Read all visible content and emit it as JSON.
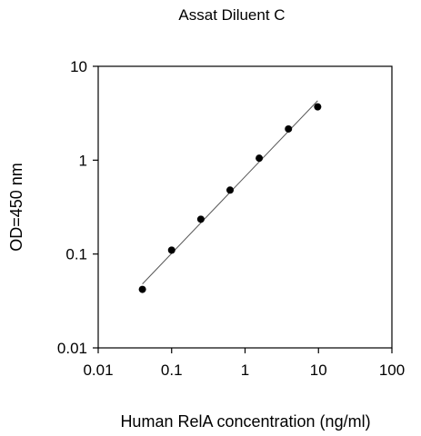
{
  "chart_data": {
    "type": "scatter",
    "title": "Assat Diluent C",
    "xlabel": "Human RelA concentration (ng/ml)",
    "ylabel": "OD=450 nm",
    "xscale": "log",
    "yscale": "log",
    "xlim": [
      0.01,
      100
    ],
    "ylim": [
      0.01,
      10
    ],
    "x_ticks": [
      "0.01",
      "0.1",
      "1",
      "10",
      "100"
    ],
    "y_ticks": [
      "0.01",
      "0.1",
      "1",
      "10"
    ],
    "grid": false,
    "legend": "none",
    "points": [
      {
        "x": 0.04,
        "y": 0.042
      },
      {
        "x": 0.1,
        "y": 0.11
      },
      {
        "x": 0.25,
        "y": 0.235
      },
      {
        "x": 0.625,
        "y": 0.48
      },
      {
        "x": 1.56,
        "y": 1.05
      },
      {
        "x": 3.9,
        "y": 2.15
      },
      {
        "x": 9.75,
        "y": 3.7
      }
    ],
    "fit_line": {
      "x": [
        0.04,
        9.75
      ],
      "y": [
        0.048,
        4.3
      ]
    },
    "marker_color": "#000000",
    "line_color": "#555555"
  }
}
